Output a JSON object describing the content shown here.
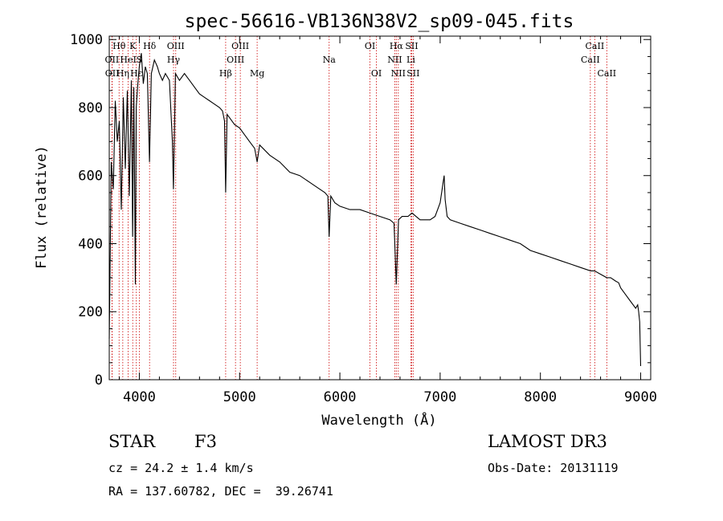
{
  "chart_data": {
    "type": "line",
    "title": "spec-56616-VB136N38V2_sp09-045.fits",
    "xlabel": "Wavelength (Å)",
    "ylabel": "Flux (relative)",
    "xlim": [
      3700,
      9100
    ],
    "ylim": [
      0,
      1010
    ],
    "xticks": [
      4000,
      5000,
      6000,
      7000,
      8000,
      9000
    ],
    "yticks": [
      0,
      200,
      400,
      600,
      800,
      1000
    ],
    "x_tick_labels": [
      "4000",
      "5000",
      "6000",
      "7000",
      "8000",
      "9000"
    ],
    "y_tick_labels": [
      "0",
      "200",
      "400",
      "600",
      "800",
      "1000"
    ],
    "series": [
      {
        "name": "flux",
        "x": [
          3700,
          3720,
          3740,
          3760,
          3780,
          3800,
          3820,
          3840,
          3860,
          3880,
          3900,
          3920,
          3933,
          3945,
          3960,
          3969,
          3985,
          4000,
          4020,
          4040,
          4060,
          4080,
          4101,
          4120,
          4150,
          4180,
          4200,
          4230,
          4260,
          4300,
          4330,
          4340,
          4360,
          4400,
          4450,
          4500,
          4550,
          4600,
          4650,
          4700,
          4750,
          4800,
          4830,
          4850,
          4861,
          4875,
          4900,
          4950,
          5000,
          5050,
          5100,
          5150,
          5175,
          5200,
          5300,
          5400,
          5500,
          5600,
          5700,
          5800,
          5850,
          5880,
          5893,
          5910,
          5950,
          6000,
          6100,
          6200,
          6300,
          6400,
          6500,
          6540,
          6563,
          6585,
          6620,
          6680,
          6720,
          6800,
          6900,
          6950,
          7000,
          7030,
          7040,
          7050,
          7070,
          7100,
          7200,
          7300,
          7400,
          7500,
          7600,
          7700,
          7800,
          7900,
          8000,
          8100,
          8200,
          8300,
          8400,
          8500,
          8540,
          8600,
          8662,
          8700,
          8750,
          8780,
          8800,
          8850,
          8900,
          8950,
          8970,
          8980,
          8990,
          9000
        ],
        "y": [
          120,
          640,
          560,
          820,
          700,
          760,
          500,
          830,
          620,
          850,
          540,
          880,
          420,
          860,
          280,
          800,
          870,
          920,
          960,
          870,
          920,
          900,
          640,
          900,
          940,
          920,
          900,
          880,
          900,
          880,
          700,
          560,
          900,
          880,
          900,
          880,
          860,
          840,
          830,
          820,
          810,
          800,
          790,
          760,
          550,
          780,
          770,
          750,
          740,
          720,
          700,
          680,
          640,
          690,
          660,
          640,
          610,
          600,
          580,
          560,
          550,
          540,
          420,
          540,
          520,
          510,
          500,
          500,
          490,
          480,
          470,
          460,
          280,
          470,
          480,
          480,
          490,
          470,
          470,
          480,
          520,
          580,
          600,
          530,
          480,
          470,
          460,
          450,
          440,
          430,
          420,
          410,
          400,
          380,
          370,
          360,
          350,
          340,
          330,
          320,
          320,
          310,
          300,
          300,
          290,
          285,
          270,
          250,
          230,
          210,
          220,
          200,
          170,
          40
        ]
      }
    ],
    "lines": [
      {
        "name": "Hθ",
        "x": 3798,
        "row": 0
      },
      {
        "name": "OII",
        "x": 3727,
        "row": 1
      },
      {
        "name": "OII",
        "x": 3729,
        "row": 2
      },
      {
        "name": "Hη",
        "x": 3835,
        "row": 2
      },
      {
        "name": "HeI",
        "x": 3889,
        "row": 1
      },
      {
        "name": "Hε",
        "x": 3970,
        "row": 2
      },
      {
        "name": "K",
        "x": 3934,
        "row": 0
      },
      {
        "name": "S",
        "x": 4000,
        "row": 1
      },
      {
        "name": "Hδ",
        "x": 4102,
        "row": 0
      },
      {
        "name": "OIII",
        "x": 4363,
        "row": 0
      },
      {
        "name": "Hγ",
        "x": 4341,
        "row": 1
      },
      {
        "name": "Hβ",
        "x": 4861,
        "row": 2
      },
      {
        "name": "OIII",
        "x": 4959,
        "row": 1
      },
      {
        "name": "OIII",
        "x": 5007,
        "row": 0
      },
      {
        "name": "Mg",
        "x": 5175,
        "row": 2
      },
      {
        "name": "Na",
        "x": 5893,
        "row": 1
      },
      {
        "name": "OI",
        "x": 6300,
        "row": 0
      },
      {
        "name": "OI",
        "x": 6364,
        "row": 2
      },
      {
        "name": "Hα",
        "x": 6563,
        "row": 0
      },
      {
        "name": "NII",
        "x": 6548,
        "row": 1
      },
      {
        "name": "NII",
        "x": 6583,
        "row": 2
      },
      {
        "name": "SII",
        "x": 6716,
        "row": 0
      },
      {
        "name": "Li",
        "x": 6708,
        "row": 1
      },
      {
        "name": "SII",
        "x": 6731,
        "row": 2
      },
      {
        "name": "CaII",
        "x": 8542,
        "row": 0
      },
      {
        "name": "CaII",
        "x": 8498,
        "row": 1
      },
      {
        "name": "CaII",
        "x": 8662,
        "row": 2
      }
    ]
  },
  "info": {
    "object_class": "STAR",
    "subclass": "F3",
    "survey": "LAMOST DR3",
    "cz": "cz = 24.2 ± 1.4 km/s",
    "obs_date": "Obs-Date: 20131119",
    "coords": "RA = 137.60782, DEC =  39.26741"
  },
  "colors": {
    "line_marker": "#cc0000",
    "spectrum": "#000000"
  }
}
